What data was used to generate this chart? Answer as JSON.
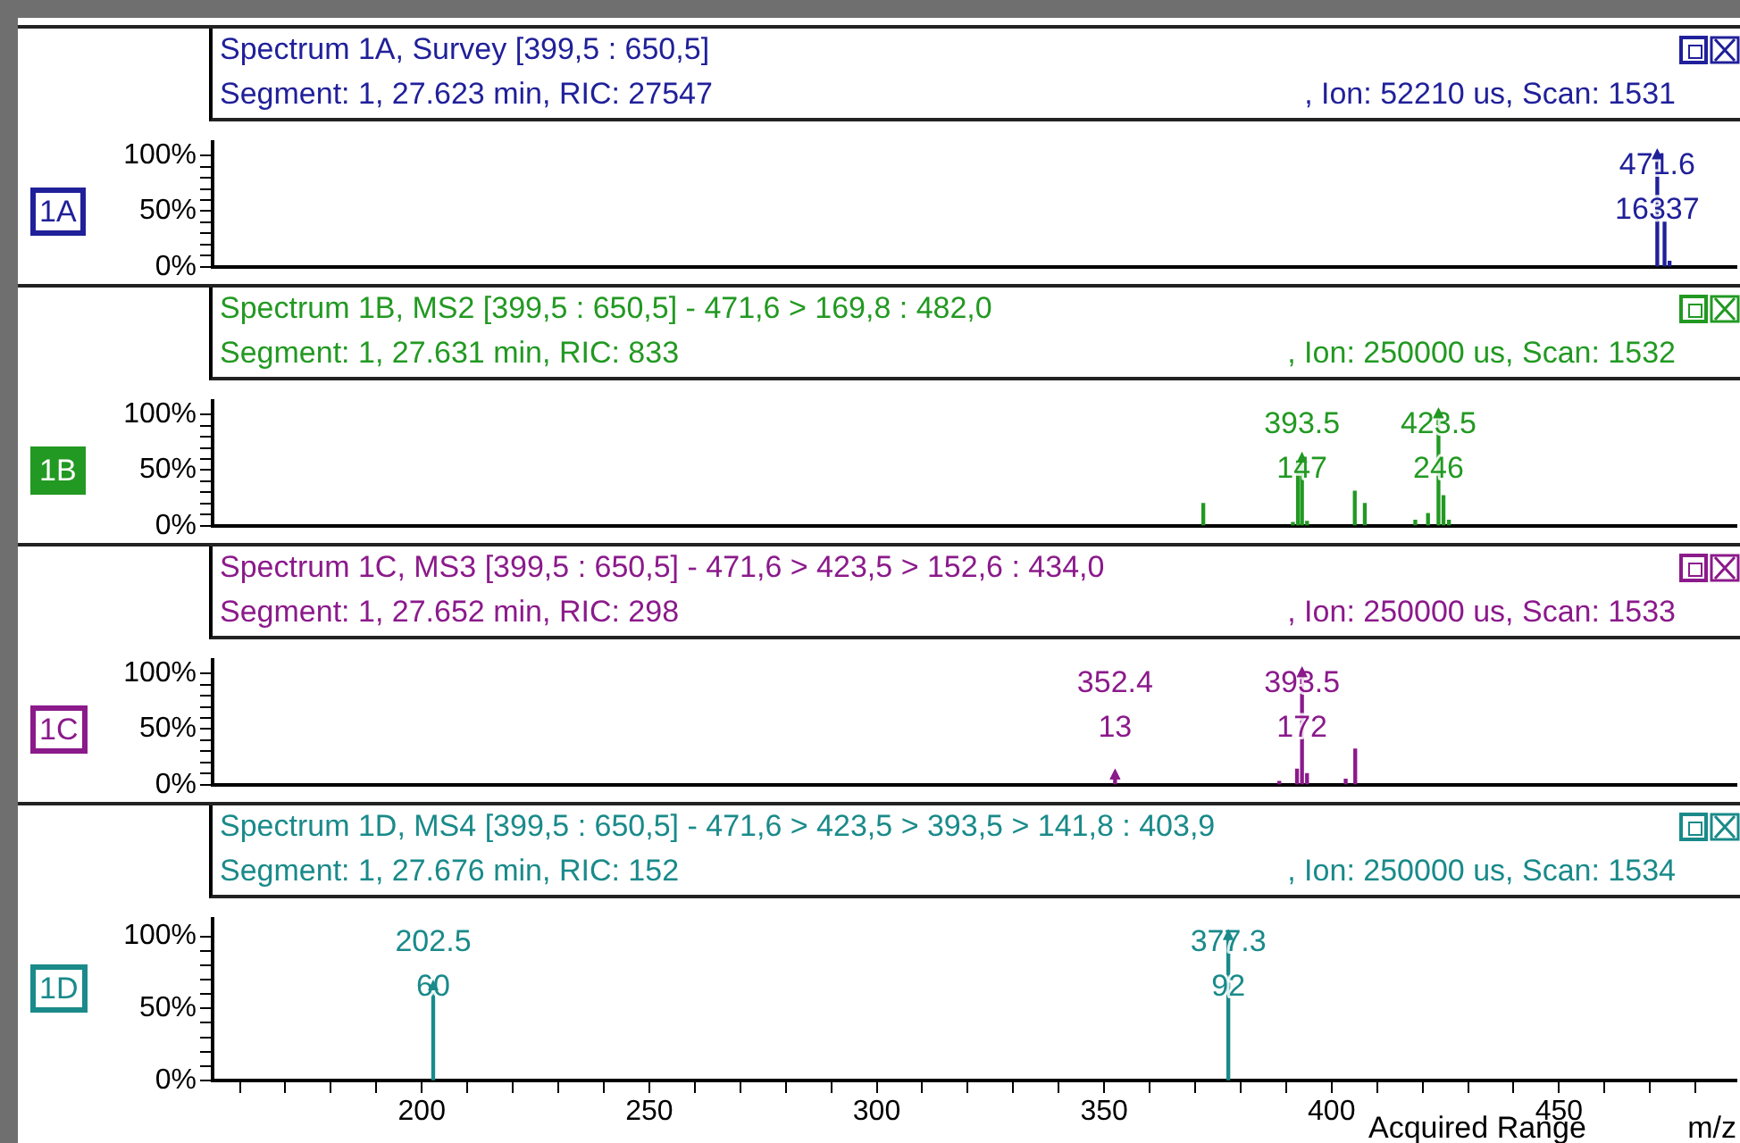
{
  "chart_data": [
    {
      "type": "bar",
      "title": "Spectrum 1A, Survey [399,5 : 650,5]",
      "subtitle": "Segment: 1, 27.623 min, RIC: 27547",
      "color": "#20209a",
      "annotations": [
        ", Ion: 52210 us, Scan: 1531",
        "1A",
        {
          "text": "471.6",
          "x": 471.6,
          "y": 100
        },
        {
          "text": "16337",
          "x": 471.6,
          "y": 100
        }
      ],
      "x": [
        471.6,
        473.2,
        474.3
      ],
      "values": [
        100,
        40,
        5
      ],
      "xlim": [
        154,
        489
      ],
      "ylim": [
        0,
        112
      ],
      "yticks": [
        {
          "value": 0,
          "label": "0%"
        },
        {
          "value": 10,
          "label": null
        },
        {
          "value": 20,
          "label": null
        },
        {
          "value": 30,
          "label": null
        },
        {
          "value": 40,
          "label": null
        },
        {
          "value": 50,
          "label": "50%"
        },
        {
          "value": 60,
          "label": null
        },
        {
          "value": 70,
          "label": null
        },
        {
          "value": 80,
          "label": null
        },
        {
          "value": 90,
          "label": null
        },
        {
          "value": 100,
          "label": "100%"
        }
      ],
      "tick_labels": "y"
    },
    {
      "type": "bar",
      "title": "Spectrum 1B, MS2 [399,5 : 650,5] - 471,6 > 169,8 : 482,0",
      "subtitle": "Segment: 1, 27.631 min, RIC: 833",
      "color": "#229922",
      "annotations": [
        ", Ion: 250000 us, Scan: 1532",
        "1B",
        {
          "text": "393.5",
          "x": 393.5,
          "y": 60
        },
        {
          "text": "147",
          "x": 393.5,
          "y": 60
        },
        {
          "text": "423.5",
          "x": 423.5,
          "y": 100
        },
        {
          "text": "246",
          "x": 423.5,
          "y": 100
        }
      ],
      "x": [
        371.8,
        391.5,
        392.6,
        393.5,
        394.6,
        405.1,
        407.3,
        418.4,
        421.2,
        423.5,
        424.6,
        425.8
      ],
      "values": [
        20,
        3,
        58,
        60,
        4,
        31,
        20,
        5,
        11,
        100,
        27,
        5
      ],
      "xlim": [
        154,
        489
      ],
      "ylim": [
        0,
        112
      ],
      "yticks": [
        {
          "value": 0,
          "label": "0%"
        },
        {
          "value": 10,
          "label": null
        },
        {
          "value": 20,
          "label": null
        },
        {
          "value": 30,
          "label": null
        },
        {
          "value": 40,
          "label": null
        },
        {
          "value": 50,
          "label": "50%"
        },
        {
          "value": 60,
          "label": null
        },
        {
          "value": 70,
          "label": null
        },
        {
          "value": 80,
          "label": null
        },
        {
          "value": 90,
          "label": null
        },
        {
          "value": 100,
          "label": "100%"
        }
      ],
      "tick_labels": "y"
    },
    {
      "type": "bar",
      "title": "Spectrum 1C, MS3 [399,5 : 650,5] - 471,6 > 423,5 > 152,6 : 434,0",
      "subtitle": "Segment: 1, 27.652 min, RIC: 298",
      "color": "#8b1a8b",
      "annotations": [
        ", Ion: 250000 us, Scan: 1533",
        "1C",
        {
          "text": "352.4",
          "x": 352.4,
          "y": 8
        },
        {
          "text": "13",
          "x": 352.4,
          "y": 8
        },
        {
          "text": "393.5",
          "x": 393.5,
          "y": 100
        },
        {
          "text": "172",
          "x": 393.5,
          "y": 100
        }
      ],
      "x": [
        352.4,
        388.5,
        392.4,
        393.5,
        394.6,
        403.1,
        405.2
      ],
      "values": [
        8,
        3,
        14,
        100,
        10,
        5,
        32
      ],
      "xlim": [
        154,
        489
      ],
      "ylim": [
        0,
        112
      ],
      "yticks": [
        {
          "value": 0,
          "label": "0%"
        },
        {
          "value": 10,
          "label": null
        },
        {
          "value": 20,
          "label": null
        },
        {
          "value": 30,
          "label": null
        },
        {
          "value": 40,
          "label": null
        },
        {
          "value": 50,
          "label": "50%"
        },
        {
          "value": 60,
          "label": null
        },
        {
          "value": 70,
          "label": null
        },
        {
          "value": 80,
          "label": null
        },
        {
          "value": 90,
          "label": null
        },
        {
          "value": 100,
          "label": "100%"
        }
      ],
      "tick_labels": "y"
    },
    {
      "type": "bar",
      "title": "Spectrum 1D, MS4 [399,5 : 650,5] - 471,6 > 423,5 > 393,5 > 141,8 : 403,9",
      "subtitle": "Segment: 1, 27.676 min, RIC: 152",
      "color": "#1a8a8a",
      "xlabel": "m/z",
      "annotations": [
        ", Ion: 250000 us, Scan: 1534",
        "1D",
        "Acquired Range",
        {
          "text": "202.5",
          "x": 202.5,
          "y": 65
        },
        {
          "text": "60",
          "x": 202.5,
          "y": 65
        },
        {
          "text": "377.3",
          "x": 377.3,
          "y": 100
        },
        {
          "text": "92",
          "x": 377.3,
          "y": 100
        }
      ],
      "x": [
        202.5,
        377.3
      ],
      "values": [
        65,
        100
      ],
      "xlim": [
        154,
        489
      ],
      "xticks": [
        {
          "value": 160,
          "label": null
        },
        {
          "value": 170,
          "label": null
        },
        {
          "value": 180,
          "label": null
        },
        {
          "value": 190,
          "label": null
        },
        200,
        {
          "value": 210,
          "label": null
        },
        {
          "value": 220,
          "label": null
        },
        {
          "value": 230,
          "label": null
        },
        {
          "value": 240,
          "label": null
        },
        250,
        {
          "value": 260,
          "label": null
        },
        {
          "value": 270,
          "label": null
        },
        {
          "value": 280,
          "label": null
        },
        {
          "value": 290,
          "label": null
        },
        300,
        {
          "value": 310,
          "label": null
        },
        {
          "value": 320,
          "label": null
        },
        {
          "value": 330,
          "label": null
        },
        {
          "value": 340,
          "label": null
        },
        350,
        {
          "value": 360,
          "label": null
        },
        {
          "value": 370,
          "label": null
        },
        {
          "value": 380,
          "label": null
        },
        {
          "value": 390,
          "label": null
        },
        400,
        {
          "value": 410,
          "label": null
        },
        {
          "value": 420,
          "label": null
        },
        {
          "value": 430,
          "label": null
        },
        {
          "value": 440,
          "label": null
        },
        450,
        {
          "value": 460,
          "label": null
        },
        {
          "value": 470,
          "label": null
        },
        {
          "value": 480,
          "label": null
        }
      ],
      "ylim": [
        0,
        112
      ],
      "yticks": [
        {
          "value": 0,
          "label": "0%"
        },
        {
          "value": 10,
          "label": null
        },
        {
          "value": 20,
          "label": null
        },
        {
          "value": 30,
          "label": null
        },
        {
          "value": 40,
          "label": null
        },
        {
          "value": 50,
          "label": "50%"
        },
        {
          "value": 60,
          "label": null
        },
        {
          "value": 70,
          "label": null
        },
        {
          "value": 80,
          "label": null
        },
        {
          "value": 90,
          "label": null
        },
        {
          "value": 100,
          "label": "100%"
        }
      ]
    }
  ]
}
